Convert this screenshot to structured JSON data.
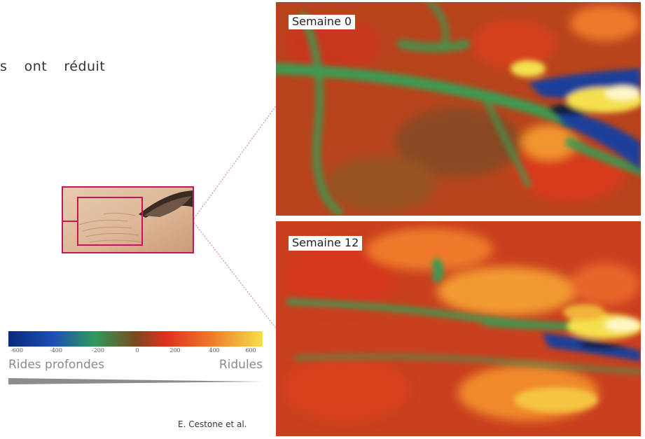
{
  "intro_text": {
    "fragment_1": "s",
    "fragment_2": "ont",
    "fragment_3": "réduit"
  },
  "panels": [
    {
      "label": "Semaine 0"
    },
    {
      "label": "Semaine 12"
    }
  ],
  "scale": {
    "ticks": [
      "-600",
      "-400",
      "-200",
      "0",
      "200",
      "400",
      "600"
    ],
    "left_label": "Rides profondes",
    "right_label": "Ridules"
  },
  "credit": "E. Cestone et al.",
  "colors": {
    "frame": "#c2185b",
    "scale_stops": [
      "#0a2a7a",
      "#1d4fb5",
      "#2e9a5a",
      "#7a4a1f",
      "#e0301e",
      "#f07a2a",
      "#f7e04a"
    ],
    "map_base": "#b8441c",
    "map_green": "#3c9a52",
    "map_blue": "#1a3f9a",
    "map_yellow": "#f5e04d"
  }
}
